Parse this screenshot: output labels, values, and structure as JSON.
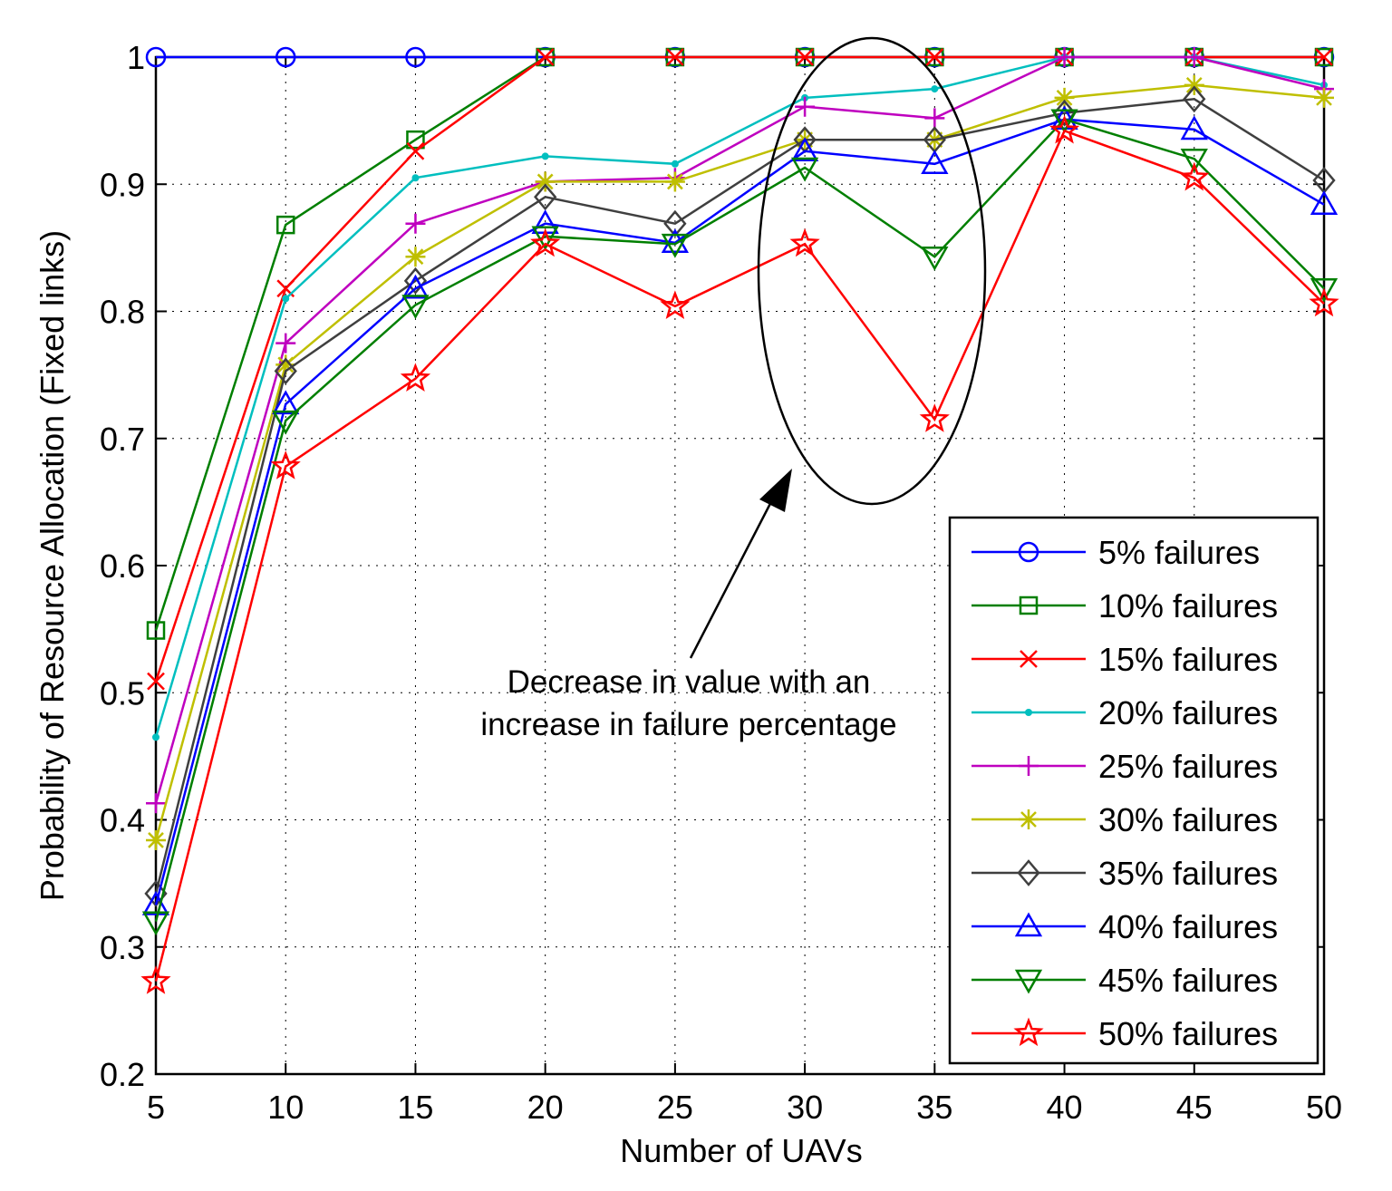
{
  "chart_data": {
    "type": "line",
    "xlabel": "Number of UAVs",
    "ylabel": "Probability of Resource Allocation (Fixed links)",
    "x": [
      5,
      10,
      15,
      20,
      25,
      30,
      35,
      40,
      45,
      50
    ],
    "x_ticks": [
      5,
      10,
      15,
      20,
      25,
      30,
      35,
      40,
      45,
      50
    ],
    "y_ticks": [
      0.2,
      0.3,
      0.4,
      0.5,
      0.6,
      0.7,
      0.8,
      0.9,
      1
    ],
    "xlim": [
      5,
      50
    ],
    "ylim": [
      0.2,
      1.0
    ],
    "grid": true,
    "legend_position": "bottom-right",
    "series": [
      {
        "name": "5% failures",
        "color": "#0000ff",
        "marker": "circle",
        "values": [
          1.0,
          1.0,
          1.0,
          1.0,
          1.0,
          1.0,
          1.0,
          1.0,
          1.0,
          1.0
        ]
      },
      {
        "name": "10% failures",
        "color": "#007f00",
        "marker": "square",
        "values": [
          0.549,
          0.868,
          0.935,
          1.0,
          1.0,
          1.0,
          1.0,
          1.0,
          1.0,
          1.0
        ]
      },
      {
        "name": "15% failures",
        "color": "#ff0000",
        "marker": "x",
        "values": [
          0.509,
          0.818,
          0.926,
          1.0,
          1.0,
          1.0,
          1.0,
          1.0,
          1.0,
          1.0
        ]
      },
      {
        "name": "20% failures",
        "color": "#00bfbf",
        "marker": "dot",
        "values": [
          0.465,
          0.81,
          0.905,
          0.922,
          0.916,
          0.968,
          0.975,
          1.0,
          1.0,
          0.978
        ]
      },
      {
        "name": "25% failures",
        "color": "#bf00bf",
        "marker": "plus",
        "values": [
          0.413,
          0.775,
          0.869,
          0.902,
          0.905,
          0.961,
          0.952,
          1.0,
          1.0,
          0.975
        ]
      },
      {
        "name": "30% failures",
        "color": "#bfbf00",
        "marker": "star",
        "values": [
          0.384,
          0.758,
          0.843,
          0.902,
          0.902,
          0.935,
          0.935,
          0.968,
          0.978,
          0.968
        ]
      },
      {
        "name": "35% failures",
        "color": "#3f3f3f",
        "marker": "diamond",
        "values": [
          0.342,
          0.753,
          0.824,
          0.89,
          0.869,
          0.935,
          0.935,
          0.956,
          0.967,
          0.903
        ]
      },
      {
        "name": "40% failures",
        "color": "#0000ff",
        "marker": "triangle-up",
        "values": [
          0.333,
          0.727,
          0.818,
          0.869,
          0.854,
          0.926,
          0.916,
          0.951,
          0.943,
          0.884
        ]
      },
      {
        "name": "45% failures",
        "color": "#007f00",
        "marker": "triangle-down",
        "values": [
          0.32,
          0.714,
          0.805,
          0.859,
          0.853,
          0.913,
          0.843,
          0.951,
          0.92,
          0.818
        ]
      },
      {
        "name": "50% failures",
        "color": "#ff0000",
        "marker": "pentagram",
        "values": [
          0.273,
          0.678,
          0.747,
          0.853,
          0.804,
          0.853,
          0.715,
          0.942,
          0.905,
          0.806
        ]
      }
    ],
    "annotation": {
      "lines": [
        "Decrease in value with an",
        "increase in failure percentage"
      ],
      "highlight_x": 32.5,
      "highlight_y": 0.8
    }
  }
}
